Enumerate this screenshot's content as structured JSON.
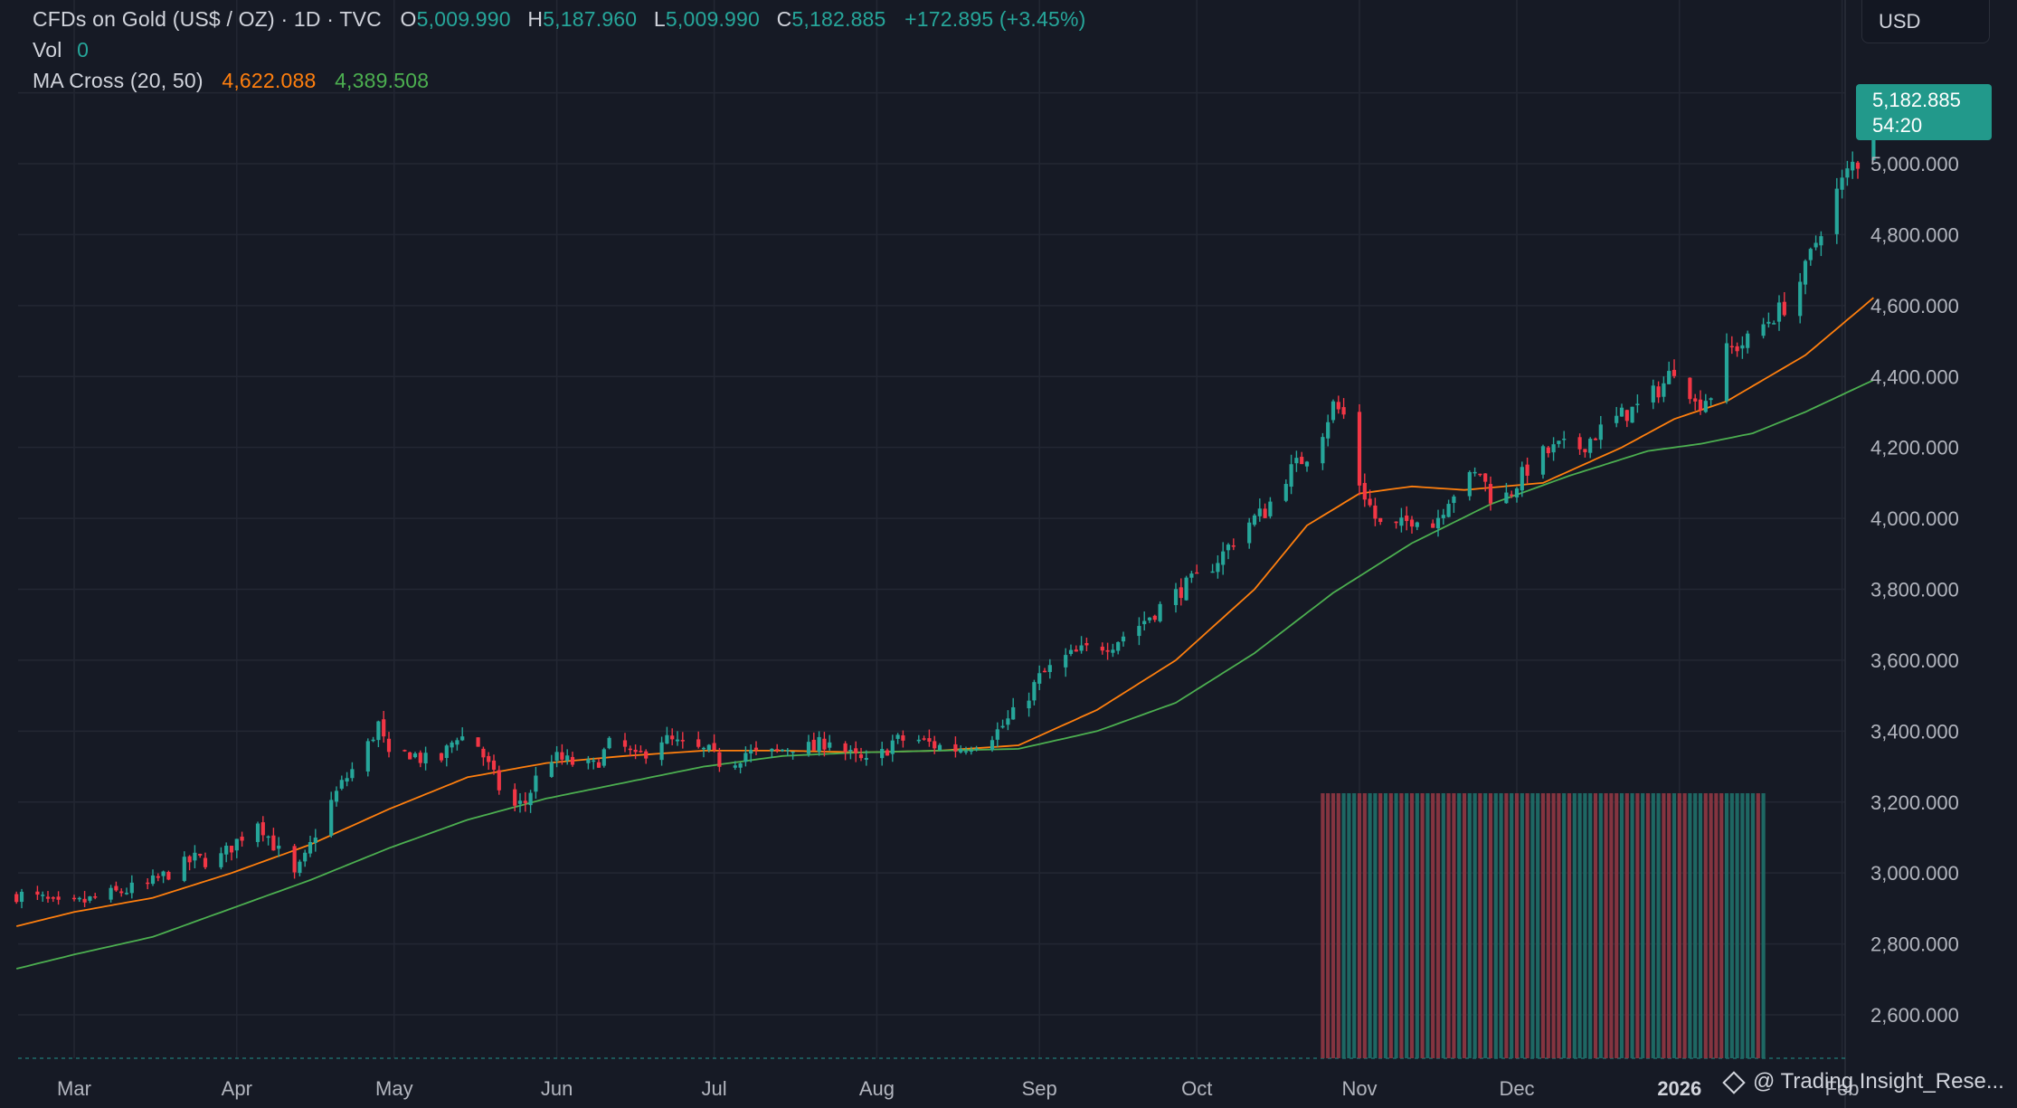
{
  "legend": {
    "symbol": "CFDs on Gold (US$ / OZ) · 1D · TVC",
    "o_key": "O",
    "o_val": "5,009.990",
    "h_key": "H",
    "h_val": "5,187.960",
    "l_key": "L",
    "l_val": "5,009.990",
    "c_key": "C",
    "c_val": "5,182.885",
    "change": "+172.895 (+3.45%)",
    "vol_label": "Vol",
    "vol_val": "0",
    "ma_label": "MA Cross (20, 50)",
    "ma_fast": "4,622.088",
    "ma_slow": "4,389.508"
  },
  "currency": "USD",
  "last_price": {
    "value": "5,182.885",
    "countdown": "54:20"
  },
  "watermark": "@ Trading Insight_Rese...",
  "colors": {
    "up": "#26a69a",
    "down": "#f23645",
    "ma_fast": "#ff7f0e",
    "ma_slow": "#4caf50",
    "background": "#161a25",
    "grid": "#232733"
  },
  "chart_data": {
    "type": "candlestick",
    "y_ticks": [
      "5,000.000",
      "4,800.000",
      "4,600.000",
      "4,400.000",
      "4,200.000",
      "4,000.000",
      "3,800.000",
      "3,600.000",
      "3,400.000",
      "3,200.000",
      "3,000.000",
      "2,800.000",
      "2,600.000"
    ],
    "ylim": [
      2470,
      5330
    ],
    "x_ticks": [
      "Mar",
      "Apr",
      "May",
      "Jun",
      "Jul",
      "Aug",
      "Sep",
      "Oct",
      "Nov",
      "Dec",
      "2026",
      "Feb"
    ],
    "x_tick_days": [
      0,
      31,
      61,
      92,
      122,
      153,
      184,
      214,
      245,
      275,
      306,
      337
    ],
    "last": {
      "open": 5009.99,
      "high": 5187.96,
      "low": 5009.99,
      "close": 5182.885
    },
    "volume_start_day": 238,
    "close_points": [
      [
        -11,
        2940
      ],
      [
        -6,
        2925
      ],
      [
        -2,
        2900
      ],
      [
        2,
        2920
      ],
      [
        7,
        2940
      ],
      [
        11,
        2955
      ],
      [
        14,
        2965
      ],
      [
        18,
        3000
      ],
      [
        23,
        3040
      ],
      [
        27,
        3030
      ],
      [
        31,
        3090
      ],
      [
        35,
        3150
      ],
      [
        38,
        3080
      ],
      [
        41,
        3020
      ],
      [
        42,
        2990
      ],
      [
        44,
        3040
      ],
      [
        47,
        3150
      ],
      [
        51,
        3250
      ],
      [
        55,
        3330
      ],
      [
        58,
        3420
      ],
      [
        60,
        3320
      ],
      [
        64,
        3340
      ],
      [
        69,
        3300
      ],
      [
        73,
        3390
      ],
      [
        77,
        3360
      ],
      [
        80,
        3270
      ],
      [
        83,
        3180
      ],
      [
        86,
        3200
      ],
      [
        90,
        3330
      ],
      [
        95,
        3310
      ],
      [
        99,
        3300
      ],
      [
        103,
        3380
      ],
      [
        107,
        3320
      ],
      [
        112,
        3380
      ],
      [
        117,
        3350
      ],
      [
        121,
        3340
      ],
      [
        124,
        3300
      ],
      [
        128,
        3340
      ],
      [
        132,
        3330
      ],
      [
        137,
        3360
      ],
      [
        141,
        3350
      ],
      [
        144,
        3380
      ],
      [
        148,
        3330
      ],
      [
        152,
        3300
      ],
      [
        156,
        3370
      ],
      [
        160,
        3380
      ],
      [
        164,
        3360
      ],
      [
        168,
        3350
      ],
      [
        172,
        3370
      ],
      [
        176,
        3400
      ],
      [
        180,
        3460
      ],
      [
        184,
        3550
      ],
      [
        188,
        3600
      ],
      [
        193,
        3630
      ],
      [
        198,
        3650
      ],
      [
        203,
        3700
      ],
      [
        207,
        3750
      ],
      [
        211,
        3800
      ],
      [
        215,
        3840
      ],
      [
        219,
        3900
      ],
      [
        223,
        3980
      ],
      [
        227,
        4020
      ],
      [
        231,
        4120
      ],
      [
        235,
        4180
      ],
      [
        238,
        4250
      ],
      [
        240,
        4320
      ],
      [
        242,
        4290
      ],
      [
        243,
        4200
      ],
      [
        245,
        4100
      ],
      [
        248,
        4000
      ],
      [
        250,
        3960
      ],
      [
        253,
        3980
      ],
      [
        256,
        4010
      ],
      [
        259,
        3980
      ],
      [
        262,
        4060
      ],
      [
        265,
        4100
      ],
      [
        268,
        4130
      ],
      [
        271,
        4030
      ],
      [
        274,
        4080
      ],
      [
        277,
        4140
      ],
      [
        280,
        4180
      ],
      [
        283,
        4200
      ],
      [
        287,
        4200
      ],
      [
        291,
        4250
      ],
      [
        295,
        4290
      ],
      [
        299,
        4320
      ],
      [
        303,
        4380
      ],
      [
        306,
        4450
      ],
      [
        309,
        4320
      ],
      [
        312,
        4350
      ],
      [
        315,
        4470
      ],
      [
        319,
        4500
      ],
      [
        323,
        4560
      ],
      [
        327,
        4610
      ],
      [
        330,
        4700
      ],
      [
        333,
        4820
      ],
      [
        336,
        4920
      ],
      [
        339,
        5000
      ],
      [
        342,
        5010
      ],
      [
        343,
        5183
      ]
    ],
    "series": [
      {
        "name": "MA Cross (20, 50)",
        "role": "fast",
        "value_last": 4622.088,
        "points": [
          [
            -11,
            2850
          ],
          [
            0,
            2890
          ],
          [
            15,
            2930
          ],
          [
            30,
            3000
          ],
          [
            45,
            3080
          ],
          [
            60,
            3180
          ],
          [
            75,
            3270
          ],
          [
            90,
            3310
          ],
          [
            105,
            3330
          ],
          [
            120,
            3345
          ],
          [
            135,
            3345
          ],
          [
            150,
            3340
          ],
          [
            165,
            3345
          ],
          [
            180,
            3360
          ],
          [
            195,
            3460
          ],
          [
            210,
            3600
          ],
          [
            225,
            3800
          ],
          [
            235,
            3980
          ],
          [
            245,
            4070
          ],
          [
            255,
            4090
          ],
          [
            265,
            4080
          ],
          [
            280,
            4100
          ],
          [
            295,
            4200
          ],
          [
            305,
            4280
          ],
          [
            315,
            4330
          ],
          [
            330,
            4460
          ],
          [
            343,
            4622
          ]
        ]
      },
      {
        "name": "MA Cross (20, 50)",
        "role": "slow",
        "value_last": 4389.508,
        "points": [
          [
            -11,
            2730
          ],
          [
            0,
            2770
          ],
          [
            15,
            2820
          ],
          [
            30,
            2900
          ],
          [
            45,
            2980
          ],
          [
            60,
            3070
          ],
          [
            75,
            3150
          ],
          [
            90,
            3210
          ],
          [
            105,
            3255
          ],
          [
            120,
            3300
          ],
          [
            135,
            3330
          ],
          [
            150,
            3340
          ],
          [
            165,
            3345
          ],
          [
            180,
            3350
          ],
          [
            195,
            3400
          ],
          [
            210,
            3480
          ],
          [
            225,
            3620
          ],
          [
            240,
            3790
          ],
          [
            255,
            3930
          ],
          [
            270,
            4040
          ],
          [
            285,
            4120
          ],
          [
            300,
            4190
          ],
          [
            310,
            4210
          ],
          [
            320,
            4240
          ],
          [
            330,
            4300
          ],
          [
            343,
            4390
          ]
        ]
      }
    ]
  }
}
